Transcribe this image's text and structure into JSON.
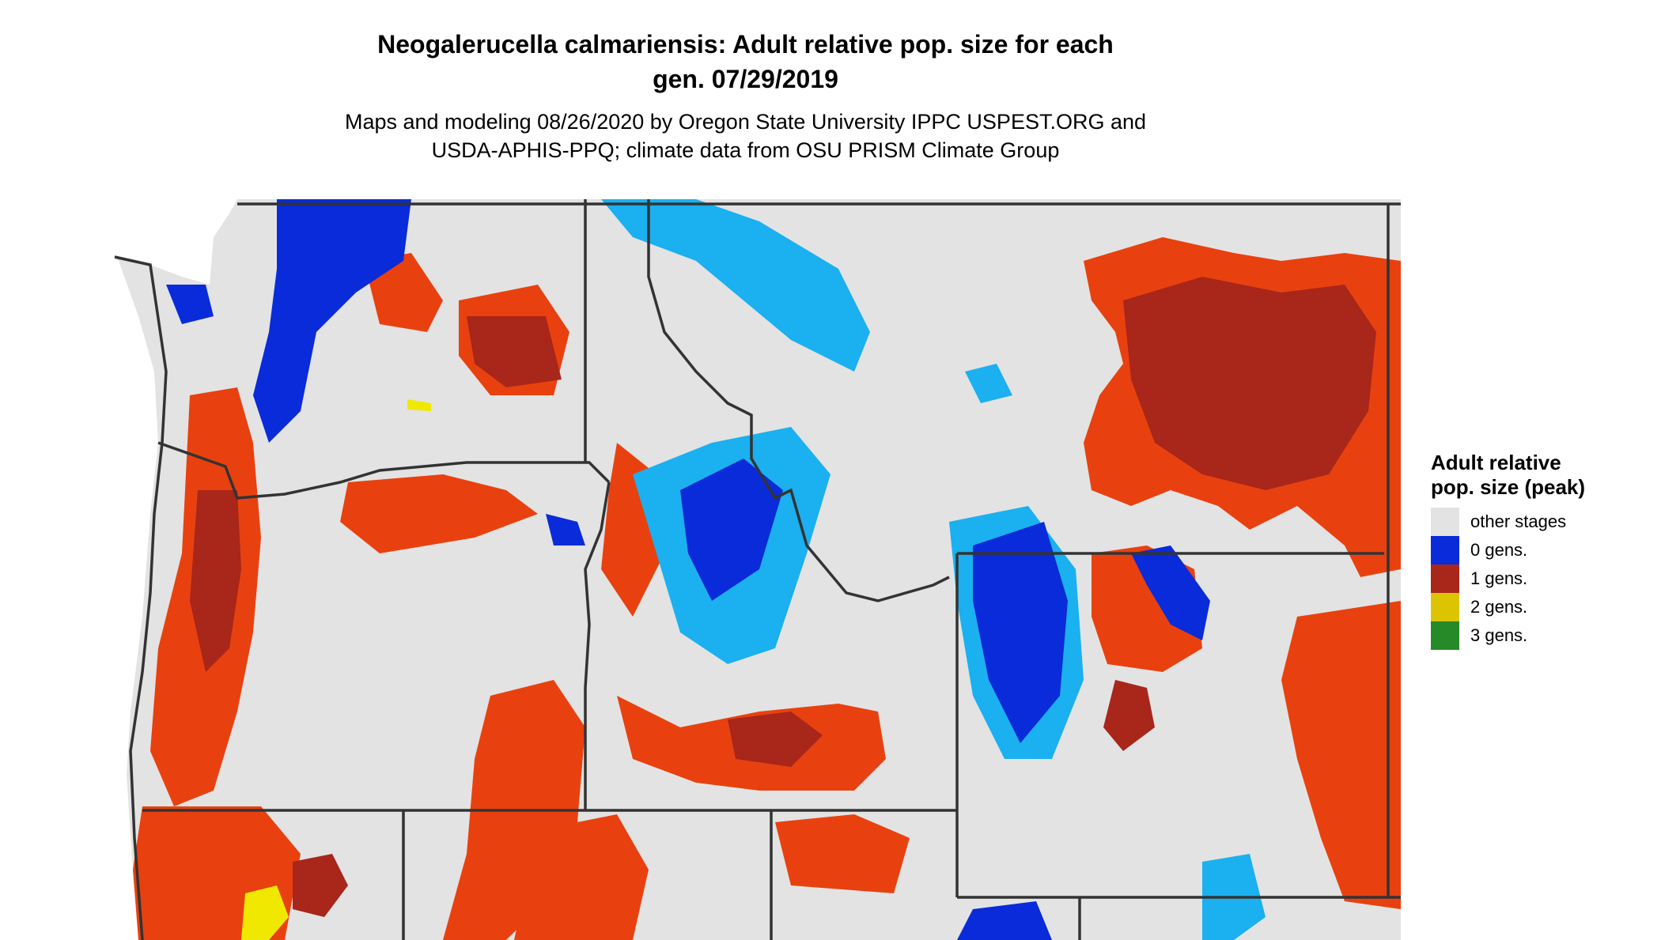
{
  "title": {
    "line1": "Neogalerucella calmariensis: Adult relative pop. size for each",
    "line2": "gen. 07/29/2019"
  },
  "subtitle": {
    "line1": "Maps and modeling 08/26/2020 by Oregon State University IPPC USPEST.ORG and",
    "line2": "USDA-APHIS-PPQ; climate data from OSU PRISM Climate Group"
  },
  "legend": {
    "title": "Adult relative pop. size (peak)",
    "items": [
      {
        "label": "other stages",
        "color": "#e3e3e3"
      },
      {
        "label": "0 gens.",
        "color": "#0a2bd9"
      },
      {
        "label": "1 gens.",
        "color": "#a8261a"
      },
      {
        "label": "2 gens.",
        "color": "#dcc500"
      },
      {
        "label": "3 gens.",
        "color": "#268a28"
      }
    ]
  },
  "map_colors": {
    "land": "#e3e3e3",
    "zero_gens": "#0a2bd9",
    "zero_gens_light": "#1bb0f0",
    "one_gens": "#a8261a",
    "one_gens_light": "#e8410f",
    "two_gens": "#f0e800",
    "border": "#333333"
  }
}
